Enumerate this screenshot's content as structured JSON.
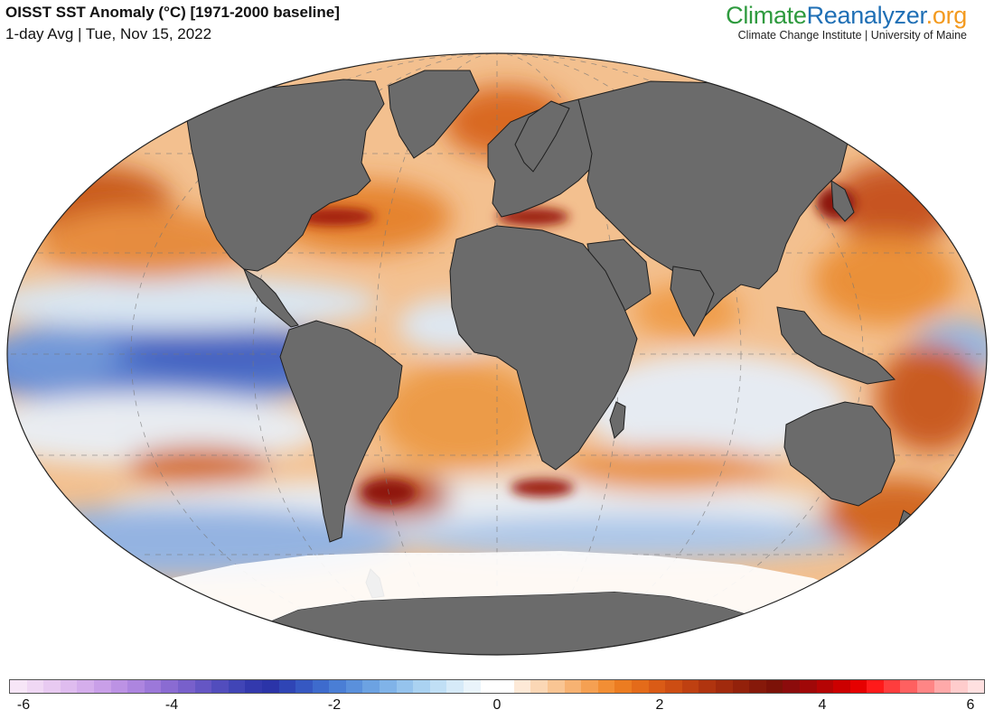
{
  "header": {
    "title": "OISST SST Anomaly (°C) [1971-2000 baseline]",
    "subtitle": "1-day Avg | Tue, Nov 15, 2022"
  },
  "brand": {
    "part1": "Climate",
    "part2": "Reanalyzer",
    "part3": ".org",
    "affiliation": "Climate Change Institute | University of Maine",
    "colors": {
      "climate": "#2e9a3e",
      "reanalyzer": "#1f6fb5",
      "org": "#f39a1f"
    }
  },
  "map": {
    "projection": "robinson",
    "land_color": "#6b6b6b",
    "ocean_neutral": "#ffffff",
    "icon": "world-map"
  },
  "legend": {
    "range": [
      -6,
      6
    ],
    "tick_labels": [
      "-6",
      "-4",
      "-2",
      "0",
      "2",
      "4",
      "6"
    ],
    "tick_values": [
      -6,
      -4,
      -2,
      0,
      2,
      4,
      6
    ],
    "colors": [
      "#f7e6f7",
      "#f0d8f4",
      "#e8caf1",
      "#dfbcef",
      "#d5aeec",
      "#c99fe8",
      "#bc92e4",
      "#ad85df",
      "#9c78d9",
      "#8a6bd2",
      "#7860cb",
      "#6556c4",
      "#524dbd",
      "#4145b6",
      "#3339ad",
      "#2b34a8",
      "#2f45b5",
      "#3658c2",
      "#3e6bcd",
      "#4a7ed5",
      "#5a90dc",
      "#6ca2e2",
      "#80b3e8",
      "#95c3ed",
      "#aad2f1",
      "#c0dff5",
      "#d6eaf8",
      "#eaf4fb",
      "#ffffff",
      "#ffffff",
      "#fde9d7",
      "#fbd7b5",
      "#f9c593",
      "#f7b272",
      "#f5a052",
      "#f28e34",
      "#ec7c21",
      "#e46b1a",
      "#da5b16",
      "#cd4d13",
      "#bf4011",
      "#b0340f",
      "#a12a0d",
      "#93210b",
      "#86190a",
      "#7c1208",
      "#8c0c0c",
      "#a00808",
      "#b50404",
      "#cc0000",
      "#e60000",
      "#ff1a1a",
      "#ff3d3d",
      "#ff6060",
      "#ff8585",
      "#ffa9a9",
      "#ffcccc",
      "#ffe0e0"
    ]
  }
}
